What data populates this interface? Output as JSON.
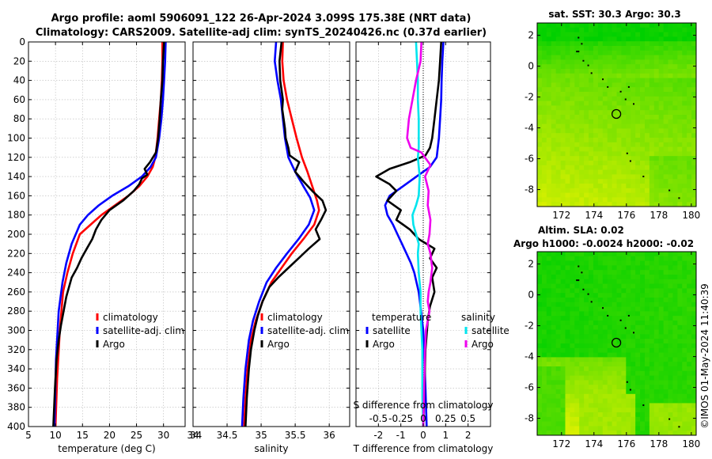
{
  "header": {
    "title_line1": "Argo profile: aoml 5906091_122 26-Apr-2024 3.099S 175.38E (NRT data)",
    "title_line2": "Climatology: CARS2009. Satellite-adj clim: synTS_20240426.nc (0.37d earlier)"
  },
  "colors": {
    "red": "#ff0000",
    "blue": "#0000ff",
    "black": "#000000",
    "cyan": "#00e5ee",
    "magenta": "#ee00ee",
    "grid": "#b8b8b8",
    "map_green": "#00d000",
    "map_yellow": "#d8f000"
  },
  "footer": {
    "timestamp": "©IMOS 01-May-2024 11:40:39"
  },
  "chart_data": [
    {
      "type": "line",
      "xlabel": "temperature (deg C)",
      "ylabel": "",
      "xlim": [
        5,
        34
      ],
      "ylim": [
        400,
        0
      ],
      "xticks": [
        5,
        10,
        15,
        20,
        25,
        30
      ],
      "yticks": [
        0,
        20,
        40,
        60,
        80,
        100,
        120,
        140,
        160,
        180,
        200,
        220,
        240,
        260,
        280,
        300,
        320,
        340,
        360,
        380,
        400
      ],
      "grid": true,
      "legend": {
        "position": "lower-right"
      },
      "series": [
        {
          "name": "climatology",
          "color": "red",
          "x": [
            29.8,
            29.8,
            29.7,
            29.5,
            29.2,
            28.9,
            28.5,
            28.0,
            27.0,
            25.5,
            23.5,
            21.0,
            18.5,
            16.5,
            14.5,
            13.2,
            12.2,
            11.4,
            10.8,
            10.3,
            10.0
          ],
          "y": [
            0,
            20,
            40,
            60,
            80,
            100,
            120,
            130,
            140,
            150,
            160,
            170,
            180,
            190,
            200,
            220,
            240,
            260,
            300,
            350,
            400
          ]
        },
        {
          "name": "satellite-adj. clim",
          "color": "blue",
          "x": [
            30.4,
            30.3,
            30.1,
            29.9,
            29.6,
            29.2,
            28.6,
            27.6,
            26.0,
            23.5,
            20.5,
            18.0,
            16.0,
            14.5,
            13.0,
            12.0,
            11.3,
            10.6,
            10.1,
            9.8
          ],
          "y": [
            0,
            20,
            40,
            60,
            80,
            100,
            120,
            130,
            140,
            150,
            160,
            170,
            180,
            190,
            210,
            230,
            250,
            280,
            330,
            400
          ]
        },
        {
          "name": "Argo",
          "color": "black",
          "x": [
            30.1,
            30.0,
            29.9,
            29.8,
            29.5,
            29.3,
            29.0,
            28.6,
            27.5,
            26.5,
            27.0,
            26.0,
            25.5,
            24.5,
            22.5,
            20.0,
            18.5,
            17.5,
            16.8,
            15.8,
            14.8,
            14.0,
            13.0,
            12.5,
            12.0,
            11.5,
            11.0,
            10.6,
            10.2,
            9.9,
            9.6
          ],
          "y": [
            0,
            10,
            20,
            40,
            60,
            80,
            100,
            115,
            125,
            132,
            138,
            142,
            148,
            155,
            165,
            175,
            185,
            195,
            205,
            215,
            225,
            235,
            245,
            255,
            265,
            280,
            295,
            310,
            330,
            360,
            400
          ]
        }
      ]
    },
    {
      "type": "line",
      "xlabel": "salinity",
      "ylabel": "",
      "xlim": [
        34,
        36.3
      ],
      "ylim": [
        400,
        0
      ],
      "xticks": [
        34,
        34.5,
        35,
        35.5,
        36
      ],
      "grid": true,
      "legend": {
        "position": "lower-right"
      },
      "series": [
        {
          "name": "climatology",
          "color": "red",
          "x": [
            35.32,
            35.31,
            35.33,
            35.38,
            35.45,
            35.52,
            35.6,
            35.68,
            35.75,
            35.82,
            35.85,
            35.78,
            35.62,
            35.45,
            35.3,
            35.15,
            35.02,
            34.92,
            34.85,
            34.8,
            34.77,
            34.75
          ],
          "y": [
            0,
            20,
            40,
            60,
            80,
            100,
            120,
            135,
            150,
            165,
            175,
            190,
            205,
            220,
            235,
            250,
            270,
            290,
            310,
            340,
            370,
            400
          ]
        },
        {
          "name": "satellite-adj. clim",
          "color": "blue",
          "x": [
            35.22,
            35.2,
            35.24,
            35.29,
            35.32,
            35.35,
            35.4,
            35.5,
            35.62,
            35.72,
            35.78,
            35.7,
            35.55,
            35.38,
            35.22,
            35.08,
            34.97,
            34.88,
            34.82,
            34.77,
            34.74,
            34.72
          ],
          "y": [
            0,
            20,
            40,
            60,
            80,
            100,
            120,
            135,
            150,
            162,
            175,
            190,
            205,
            220,
            235,
            250,
            270,
            290,
            310,
            340,
            370,
            400
          ]
        },
        {
          "name": "Argo",
          "color": "black",
          "x": [
            35.3,
            35.27,
            35.28,
            35.32,
            35.31,
            35.33,
            35.35,
            35.36,
            35.4,
            35.42,
            35.56,
            35.5,
            35.62,
            35.75,
            35.9,
            35.95,
            35.88,
            35.8,
            35.86,
            35.7,
            35.55,
            35.4,
            35.25,
            35.12,
            35.02,
            34.95,
            34.9,
            34.85,
            34.82,
            34.79,
            34.77
          ],
          "y": [
            0,
            20,
            40,
            60,
            70,
            80,
            90,
            100,
            110,
            118,
            125,
            135,
            145,
            155,
            165,
            175,
            185,
            195,
            205,
            215,
            225,
            235,
            245,
            255,
            270,
            285,
            300,
            320,
            340,
            370,
            400
          ]
        }
      ]
    },
    {
      "type": "line",
      "xlabel": "T difference from climatology",
      "ylabel": "",
      "xlim": [
        -3,
        3
      ],
      "ylim": [
        400,
        0
      ],
      "xticks": [
        -2,
        -1,
        0,
        1,
        2
      ],
      "secondary_xlabel": "S difference from climatology",
      "secondary_xticks": [
        -0.5,
        -0.25,
        0,
        0.25,
        0.5
      ],
      "secondary_xlim": [
        -0.75,
        0.75
      ],
      "grid": true,
      "zero_line": "dotted",
      "legend": {
        "position": "lower-center",
        "temperature_title": "temperature",
        "salinity_title": "salinity",
        "items": [
          "satellite",
          "Argo",
          "satellite",
          "Argo"
        ]
      },
      "series": [
        {
          "name": "temperature satellite",
          "color": "blue",
          "x": [
            0.9,
            0.85,
            0.82,
            0.8,
            0.75,
            0.7,
            0.65,
            0.6,
            0.3,
            -0.3,
            -0.9,
            -1.5,
            -1.7,
            -1.6,
            -1.35,
            -1.15,
            -0.95,
            -0.75,
            -0.55,
            -0.4,
            -0.3,
            -0.2,
            -0.15,
            -0.1,
            -0.05,
            0.0,
            0.05,
            0.1,
            0.15
          ],
          "y": [
            0,
            20,
            40,
            60,
            80,
            100,
            110,
            120,
            130,
            140,
            150,
            160,
            170,
            180,
            190,
            200,
            210,
            220,
            230,
            240,
            250,
            260,
            270,
            280,
            290,
            300,
            330,
            360,
            400
          ]
        },
        {
          "name": "temperature Argo",
          "color": "black",
          "x": [
            0.8,
            0.75,
            0.7,
            0.6,
            0.5,
            0.4,
            0.3,
            0.1,
            -0.6,
            -1.5,
            -2.1,
            -1.5,
            -1.2,
            -1.6,
            -1.0,
            -1.2,
            -0.6,
            -0.2,
            0.5,
            0.3,
            0.6,
            0.4,
            0.5,
            0.3,
            0.2,
            0.1,
            0.05,
            0.0
          ],
          "y": [
            0,
            20,
            40,
            60,
            80,
            100,
            110,
            118,
            125,
            132,
            140,
            148,
            155,
            165,
            175,
            185,
            195,
            205,
            215,
            225,
            235,
            245,
            260,
            275,
            290,
            320,
            360,
            400
          ]
        },
        {
          "name": "salinity satellite",
          "color": "cyan",
          "x": [
            -0.08,
            -0.07,
            -0.06,
            -0.06,
            -0.05,
            -0.05,
            -0.05,
            -0.06,
            -0.04,
            -0.05,
            -0.08,
            -0.12,
            -0.11,
            -0.08,
            -0.05,
            -0.06,
            -0.05,
            -0.03,
            -0.03,
            -0.02,
            -0.01,
            -0.01,
            -0.01,
            0.0
          ],
          "y": [
            0,
            20,
            40,
            60,
            80,
            100,
            110,
            120,
            140,
            160,
            170,
            180,
            190,
            200,
            210,
            220,
            240,
            260,
            280,
            300,
            320,
            340,
            370,
            400
          ]
        },
        {
          "name": "salinity Argo",
          "color": "magenta",
          "x": [
            -0.02,
            -0.03,
            -0.08,
            -0.12,
            -0.16,
            -0.18,
            -0.14,
            -0.02,
            0.08,
            0.02,
            0.06,
            0.05,
            0.08,
            0.07,
            0.05,
            0.08,
            0.1,
            0.08,
            0.06,
            0.05,
            0.07,
            0.05,
            0.03,
            0.02,
            0.01,
            0.0
          ],
          "y": [
            0,
            20,
            40,
            60,
            80,
            100,
            110,
            115,
            128,
            140,
            155,
            170,
            185,
            200,
            210,
            220,
            235,
            250,
            260,
            270,
            280,
            290,
            300,
            320,
            360,
            400
          ]
        }
      ]
    },
    {
      "type": "heatmap",
      "title": "sat. SST: 30.3 Argo: 30.3",
      "xticks": [
        172,
        174,
        176,
        178,
        180
      ],
      "yticks": [
        2,
        0,
        -2,
        -4,
        -6,
        -8
      ],
      "xlim": [
        170.5,
        180.3
      ],
      "ylim": [
        -9.1,
        2.8
      ],
      "profile_location": {
        "lon": 175.38,
        "lat": -3.099
      }
    },
    {
      "type": "heatmap",
      "title_line1": "Altim. SLA: 0.02",
      "title_line2": "Argo h1000: -0.0024 h2000: -0.02",
      "xticks": [
        172,
        174,
        176,
        178,
        180
      ],
      "yticks": [
        2,
        0,
        -2,
        -4,
        -6,
        -8
      ],
      "xlim": [
        170.5,
        180.3
      ],
      "ylim": [
        -9.1,
        2.8
      ],
      "profile_location": {
        "lon": 175.38,
        "lat": -3.099
      }
    }
  ]
}
